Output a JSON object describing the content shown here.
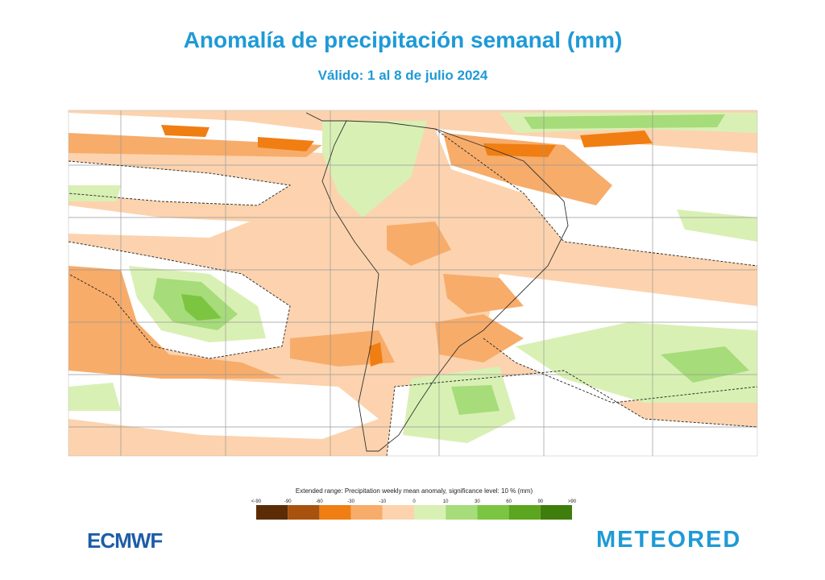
{
  "header": {
    "title": "Anomalía de precipitación semanal (mm)",
    "subtitle": "Válido: 1 al 8 de julio 2024"
  },
  "colorbar": {
    "caption": "Extended range: Precipitation weekly mean anomaly, significance level: 10 % (mm)",
    "labels": [
      "<-90",
      "-90",
      "-60",
      "-30",
      "-10",
      "0",
      "10",
      "30",
      "60",
      "90",
      ">90"
    ],
    "colors": [
      "#5b2c06",
      "#a8520f",
      "#f07e12",
      "#f7ac6a",
      "#fcd3ae",
      "#d9f0b4",
      "#a6dc7a",
      "#7cc540",
      "#5ca51f",
      "#3f7d0c"
    ]
  },
  "logos": {
    "left": "ECMWF",
    "right": "METEORED"
  }
}
